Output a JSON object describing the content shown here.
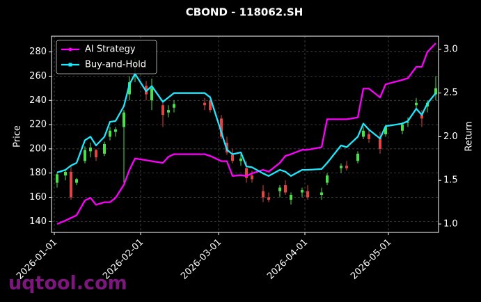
{
  "chart_data": {
    "type": "candlestick",
    "title": "CBOND - 118062.SH",
    "x": [
      "2026-01-02",
      "2026-01-05",
      "2026-01-07",
      "2026-01-09",
      "2026-01-12",
      "2026-01-14",
      "2026-01-16",
      "2026-01-19",
      "2026-01-21",
      "2026-01-23",
      "2026-01-26",
      "2026-01-28",
      "2026-01-30",
      "2026-02-03",
      "2026-02-05",
      "2026-02-09",
      "2026-02-11",
      "2026-02-13",
      "2026-02-24",
      "2026-02-26",
      "2026-03-02",
      "2026-03-04",
      "2026-03-06",
      "2026-03-09",
      "2026-03-11",
      "2026-03-13",
      "2026-03-17",
      "2026-03-19",
      "2026-03-23",
      "2026-03-25",
      "2026-03-27",
      "2026-03-31",
      "2026-04-02",
      "2026-04-07",
      "2026-04-09",
      "2026-04-14",
      "2026-04-16",
      "2026-04-20",
      "2026-04-22",
      "2026-04-24",
      "2026-04-28",
      "2026-04-30",
      "2026-05-06",
      "2026-05-08",
      "2026-05-11",
      "2026-05-13",
      "2026-05-15",
      "2026-05-18"
    ],
    "open": [
      172,
      178,
      181,
      172,
      190,
      198,
      199,
      196,
      210,
      214,
      218,
      245,
      260,
      252,
      240,
      236,
      230,
      234,
      238,
      240,
      225,
      205,
      195,
      190,
      184,
      178,
      165,
      160,
      165,
      170,
      158,
      164,
      165,
      162,
      172,
      184,
      186,
      190,
      210,
      212,
      210,
      212,
      215,
      222,
      236,
      228,
      235,
      245
    ],
    "high": [
      180,
      183,
      186,
      176,
      202,
      205,
      200,
      206,
      218,
      218,
      232,
      260,
      275,
      256,
      258,
      240,
      236,
      240,
      242,
      244,
      228,
      210,
      200,
      196,
      190,
      182,
      170,
      164,
      170,
      174,
      164,
      168,
      170,
      168,
      180,
      188,
      190,
      198,
      218,
      216,
      214,
      220,
      222,
      226,
      242,
      232,
      240,
      260
    ],
    "low": [
      168,
      174,
      158,
      170,
      188,
      193,
      190,
      194,
      207,
      210,
      172,
      240,
      255,
      240,
      232,
      218,
      226,
      230,
      232,
      230,
      208,
      195,
      188,
      186,
      172,
      172,
      156,
      156,
      160,
      162,
      154,
      160,
      158,
      158,
      170,
      180,
      182,
      188,
      208,
      205,
      196,
      210,
      212,
      218,
      232,
      218,
      230,
      240
    ],
    "close": [
      179,
      181,
      160,
      175,
      199,
      201,
      193,
      204,
      215,
      216,
      230,
      255,
      262,
      245,
      250,
      228,
      232,
      237,
      236,
      232,
      210,
      197,
      190,
      192,
      176,
      175,
      160,
      158,
      168,
      164,
      162,
      166,
      160,
      164,
      178,
      186,
      184,
      196,
      215,
      208,
      200,
      218,
      220,
      222,
      238,
      225,
      238,
      250
    ],
    "up_color": "#4be04b",
    "down_color": "#e04545",
    "series": [
      {
        "name": "AI Strategy",
        "color": "#ff00ff",
        "axis": "y2",
        "values": [
          1.0,
          1.04,
          1.07,
          1.1,
          1.27,
          1.3,
          1.22,
          1.25,
          1.25,
          1.3,
          1.45,
          1.62,
          1.75,
          1.73,
          1.72,
          1.7,
          1.77,
          1.8,
          1.8,
          1.78,
          1.72,
          1.72,
          1.55,
          1.56,
          1.55,
          1.58,
          1.62,
          1.6,
          1.7,
          1.78,
          1.8,
          1.85,
          1.85,
          1.88,
          2.2,
          2.2,
          2.2,
          2.22,
          2.55,
          2.55,
          2.45,
          2.6,
          2.65,
          2.67,
          2.8,
          2.8,
          2.97,
          3.07
        ]
      },
      {
        "name": "Buy-and-Hold",
        "color": "#1ee8ff",
        "axis": "y2",
        "values": [
          1.59,
          1.62,
          1.67,
          1.7,
          1.96,
          2.0,
          1.9,
          2.0,
          2.17,
          2.18,
          2.35,
          2.6,
          2.72,
          2.52,
          2.58,
          2.4,
          2.45,
          2.5,
          2.5,
          2.45,
          2.05,
          1.85,
          1.8,
          1.82,
          1.66,
          1.65,
          1.58,
          1.55,
          1.62,
          1.6,
          1.55,
          1.62,
          1.62,
          1.63,
          1.7,
          1.9,
          1.88,
          2.0,
          2.15,
          2.08,
          1.98,
          2.12,
          2.15,
          2.18,
          2.32,
          2.25,
          2.38,
          2.5
        ]
      }
    ],
    "ylabel": "Price",
    "y2label": "Return",
    "xlim": [
      "2025-12-31",
      "2026-05-19"
    ],
    "xticks": [
      "2026-01-01",
      "2026-02-01",
      "2026-03-01",
      "2026-04-01",
      "2026-05-01"
    ],
    "ylim": [
      131,
      293
    ],
    "yticks": [
      140,
      160,
      180,
      200,
      220,
      240,
      260,
      280
    ],
    "y2lim": [
      0.904,
      3.151
    ],
    "y2ticks": [
      {
        "value": 1,
        "label": "1.0"
      },
      1.5,
      {
        "value": 2,
        "label": "2.0"
      },
      2.5,
      {
        "value": 3,
        "label": "3.0"
      }
    ],
    "grid": true,
    "legend": "upper left"
  },
  "watermark": "uqtool.com"
}
